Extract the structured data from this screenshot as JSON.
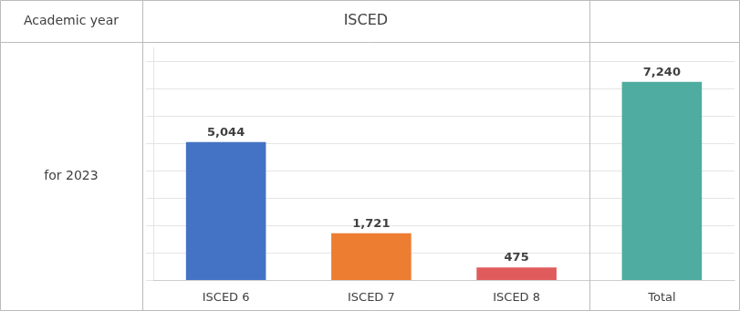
{
  "chart_data": {
    "type": "bar",
    "categories": [
      "ISCED 6",
      "ISCED 7",
      "ISCED 8",
      "Total"
    ],
    "values": [
      5044,
      1721,
      475,
      7240
    ],
    "value_labels": [
      "5,044",
      "1,721",
      "475",
      "7,240"
    ],
    "colors": [
      "#4472C4",
      "#ED7D31",
      "#E05C5C",
      "#4EACA0"
    ],
    "ylim": [
      0,
      8500
    ],
    "yticks": [
      0,
      1000,
      2000,
      3000,
      4000,
      5000,
      6000,
      7000,
      8000
    ],
    "grid": true,
    "data_labels": true,
    "tick_labels": "x",
    "annotations": [
      "Academic year",
      "ISCED",
      "for 2023"
    ]
  }
}
